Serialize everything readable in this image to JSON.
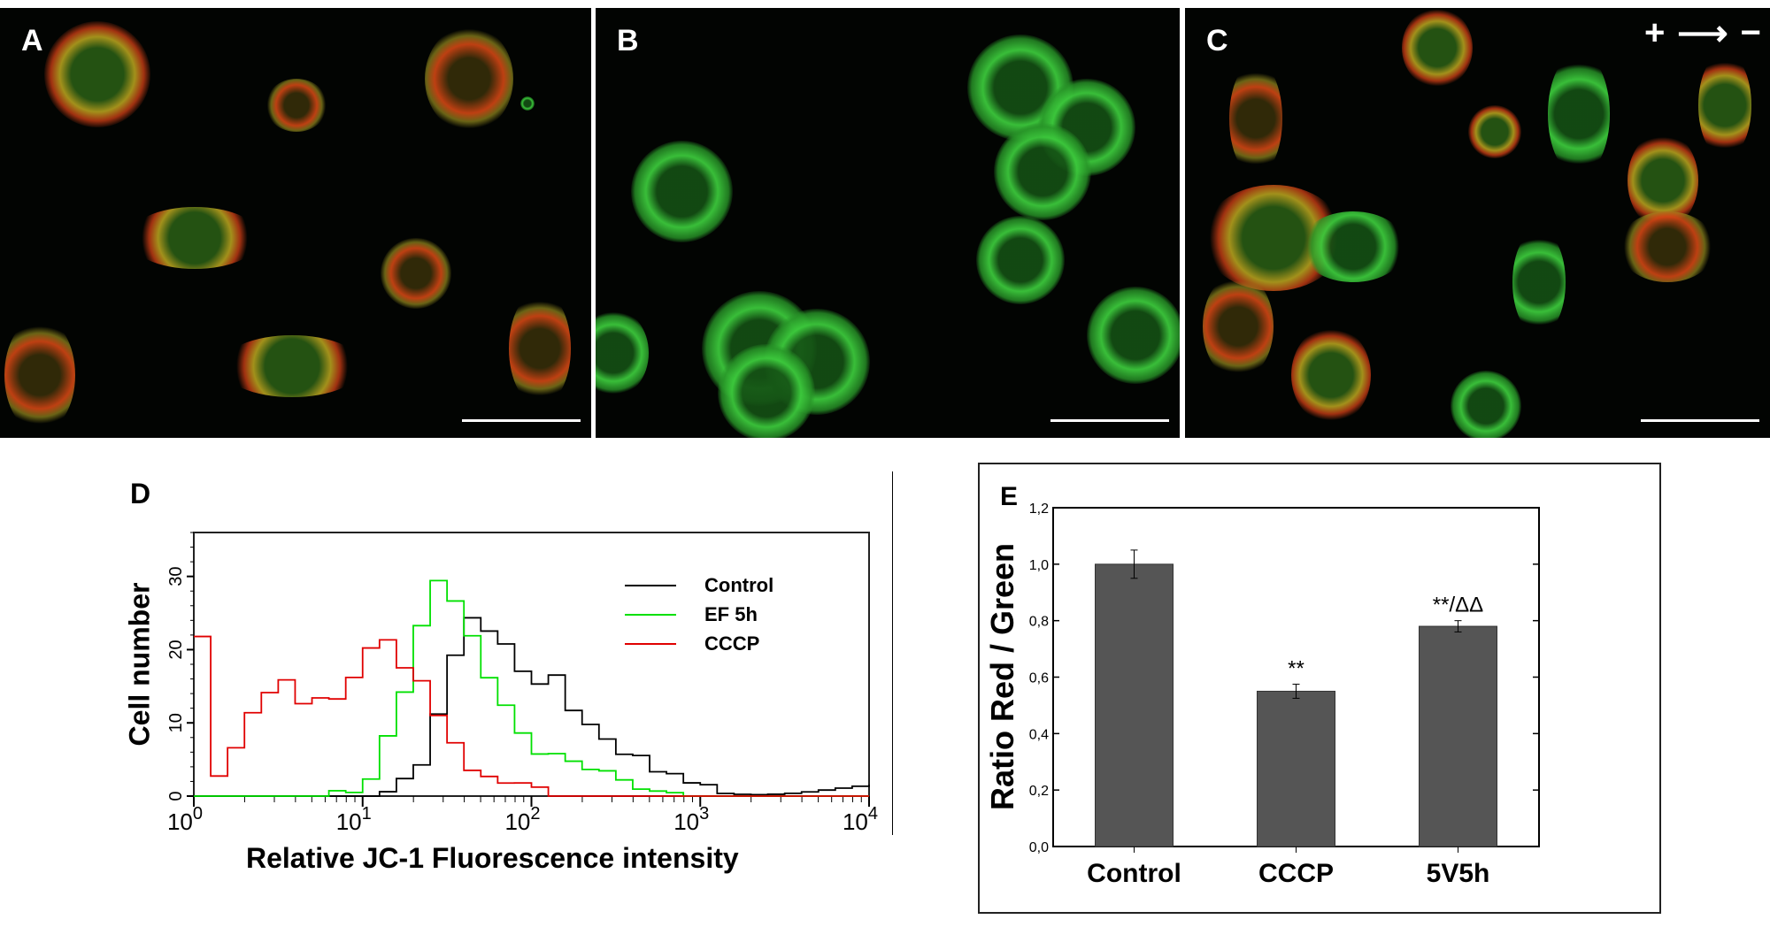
{
  "panels": {
    "a": {
      "label": "A"
    },
    "b": {
      "label": "B"
    },
    "c": {
      "label": "C",
      "polarity": {
        "plus": "+",
        "arrow": "⟶",
        "minus": "−"
      }
    }
  },
  "chart_data": [
    {
      "type": "line",
      "panel_label": "D",
      "xlabel": "Relative JC-1 Fluorescence intensity",
      "ylabel": "Cell number",
      "xscale": "log",
      "xlim_log10": [
        0,
        4
      ],
      "ylim": [
        0,
        36
      ],
      "xticks": [
        {
          "base": "10",
          "exp": "0"
        },
        {
          "base": "10",
          "exp": "1"
        },
        {
          "base": "10",
          "exp": "2"
        },
        {
          "base": "10",
          "exp": "3"
        },
        {
          "base": "10",
          "exp": "4"
        }
      ],
      "yticks": [
        "0",
        "10",
        "20",
        "30"
      ],
      "legend_position": "top-right",
      "x_log10": [
        0,
        0.1,
        0.2,
        0.3,
        0.4,
        0.5,
        0.6,
        0.7,
        0.8,
        0.9,
        1.0,
        1.1,
        1.2,
        1.3,
        1.4,
        1.5,
        1.6,
        1.7,
        1.8,
        1.9,
        2.0,
        2.1,
        2.2,
        2.3,
        2.4,
        2.5,
        2.6,
        2.7,
        2.8,
        2.9,
        3.0,
        3.1,
        3.2,
        3.3,
        3.4,
        3.5,
        3.6,
        3.7,
        3.8,
        3.9,
        4.0
      ],
      "series": [
        {
          "name": "Control",
          "color": "#000000",
          "values": [
            0,
            0,
            0,
            0,
            0,
            0,
            0,
            0,
            0,
            0,
            0,
            1,
            3,
            5,
            12,
            20,
            25,
            23,
            21,
            17,
            15,
            16,
            11,
            9,
            7,
            5,
            5,
            3,
            3,
            2,
            2,
            1,
            1,
            1,
            1,
            1,
            1,
            1,
            1,
            1,
            1
          ]
        },
        {
          "name": "EF 5h",
          "color": "#00e000",
          "values": [
            0,
            0,
            0,
            0,
            0,
            0,
            0,
            0,
            1,
            1,
            3,
            9,
            15,
            24,
            30,
            27,
            22,
            16,
            12,
            8,
            5,
            5,
            4,
            3,
            3,
            2,
            1,
            1,
            1,
            0.5,
            0.5,
            0,
            0,
            0,
            0,
            0,
            0,
            0,
            0,
            0,
            0
          ]
        },
        {
          "name": "CCCP",
          "color": "#e00000",
          "values": [
            21,
            2,
            6,
            11,
            14,
            16,
            13,
            14,
            14,
            17,
            21,
            22,
            18,
            16,
            11,
            7,
            3,
            2,
            1,
            1,
            0.5,
            0,
            0,
            0,
            0,
            0,
            0,
            0,
            0,
            0,
            0,
            0,
            0,
            0,
            0,
            0,
            0,
            0,
            0,
            0,
            0
          ]
        }
      ]
    },
    {
      "type": "bar",
      "panel_label": "E",
      "categories": [
        "Control",
        "CCCP",
        "5V5h"
      ],
      "values": [
        1.0,
        0.55,
        0.78
      ],
      "errors": [
        0.05,
        0.025,
        0.02
      ],
      "annotations": [
        "",
        "**",
        "**/ΔΔ"
      ],
      "ylabel": "Ratio Red / Green",
      "ylim": [
        0,
        1.2
      ],
      "yticks": [
        "0,0",
        "0,2",
        "0,4",
        "0,6",
        "0,8",
        "1,0",
        "1,2"
      ],
      "bar_color": "#555555"
    }
  ]
}
